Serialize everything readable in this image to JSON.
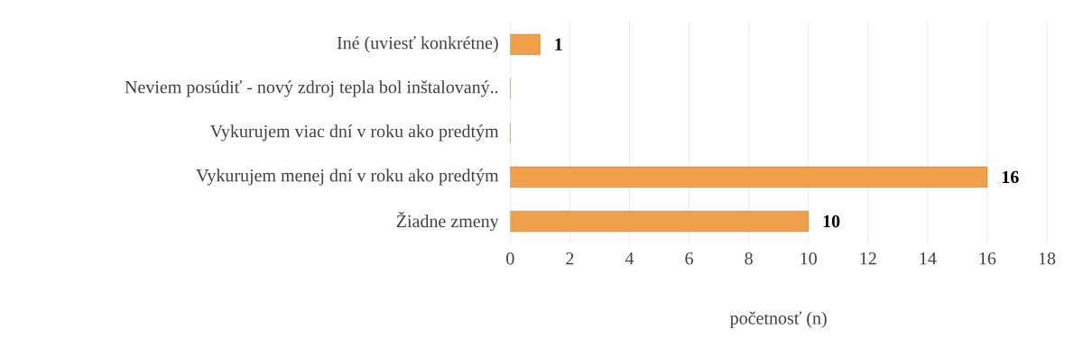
{
  "chart_data": {
    "type": "bar",
    "orientation": "horizontal",
    "categories": [
      "Iné (uviesť konkrétne)",
      "Neviem posúdiť - nový zdroj tepla bol inštalovaný..",
      "Vykurujem viac dní v roku ako predtým",
      "Vykurujem menej dní v roku ako predtým",
      "Žiadne zmeny"
    ],
    "values": [
      1,
      0,
      0,
      16,
      10
    ],
    "value_labels": [
      "1",
      null,
      null,
      "16",
      "10"
    ],
    "color": "#f0a04b",
    "xlabel": "početnosť (n)",
    "xlim": [
      0,
      18
    ],
    "xticks": [
      0,
      2,
      4,
      6,
      8,
      10,
      12,
      14,
      16,
      18
    ],
    "grid": "x"
  }
}
